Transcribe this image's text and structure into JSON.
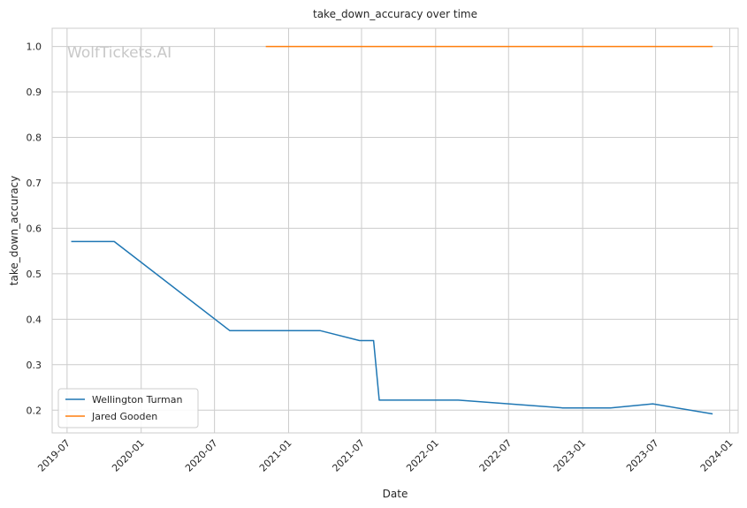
{
  "chart_data": {
    "type": "line",
    "title": "take_down_accuracy over time",
    "xlabel": "Date",
    "ylabel": "take_down_accuracy",
    "watermark": "WolfTickets.AI",
    "grid": true,
    "legend_position": "lower-left",
    "xlim": [
      "2019-05-25",
      "2024-01-22"
    ],
    "ylim": [
      0.15,
      1.04
    ],
    "x_ticks": [
      "2019-07",
      "2020-01",
      "2020-07",
      "2021-01",
      "2021-07",
      "2022-01",
      "2022-07",
      "2023-01",
      "2023-07",
      "2024-01"
    ],
    "y_ticks": [
      "0.2",
      "0.3",
      "0.4",
      "0.5",
      "0.6",
      "0.7",
      "0.8",
      "0.9",
      "1.0"
    ],
    "series": [
      {
        "name": "Wellington Turman",
        "color": "#1f77b4",
        "x": [
          "2019-07-13",
          "2019-10-26",
          "2020-08-08",
          "2021-03-20",
          "2021-06-26",
          "2021-07-31",
          "2021-08-14",
          "2022-02-26",
          "2022-11-12",
          "2023-03-11",
          "2023-06-24",
          "2023-11-18"
        ],
        "y": [
          0.571,
          0.571,
          0.375,
          0.375,
          0.353,
          0.353,
          0.222,
          0.222,
          0.205,
          0.205,
          0.214,
          0.192
        ]
      },
      {
        "name": "Jared Gooden",
        "color": "#ff7f0e",
        "x": [
          "2020-11-07",
          "2023-11-18"
        ],
        "y": [
          1.0,
          1.0
        ]
      }
    ]
  }
}
